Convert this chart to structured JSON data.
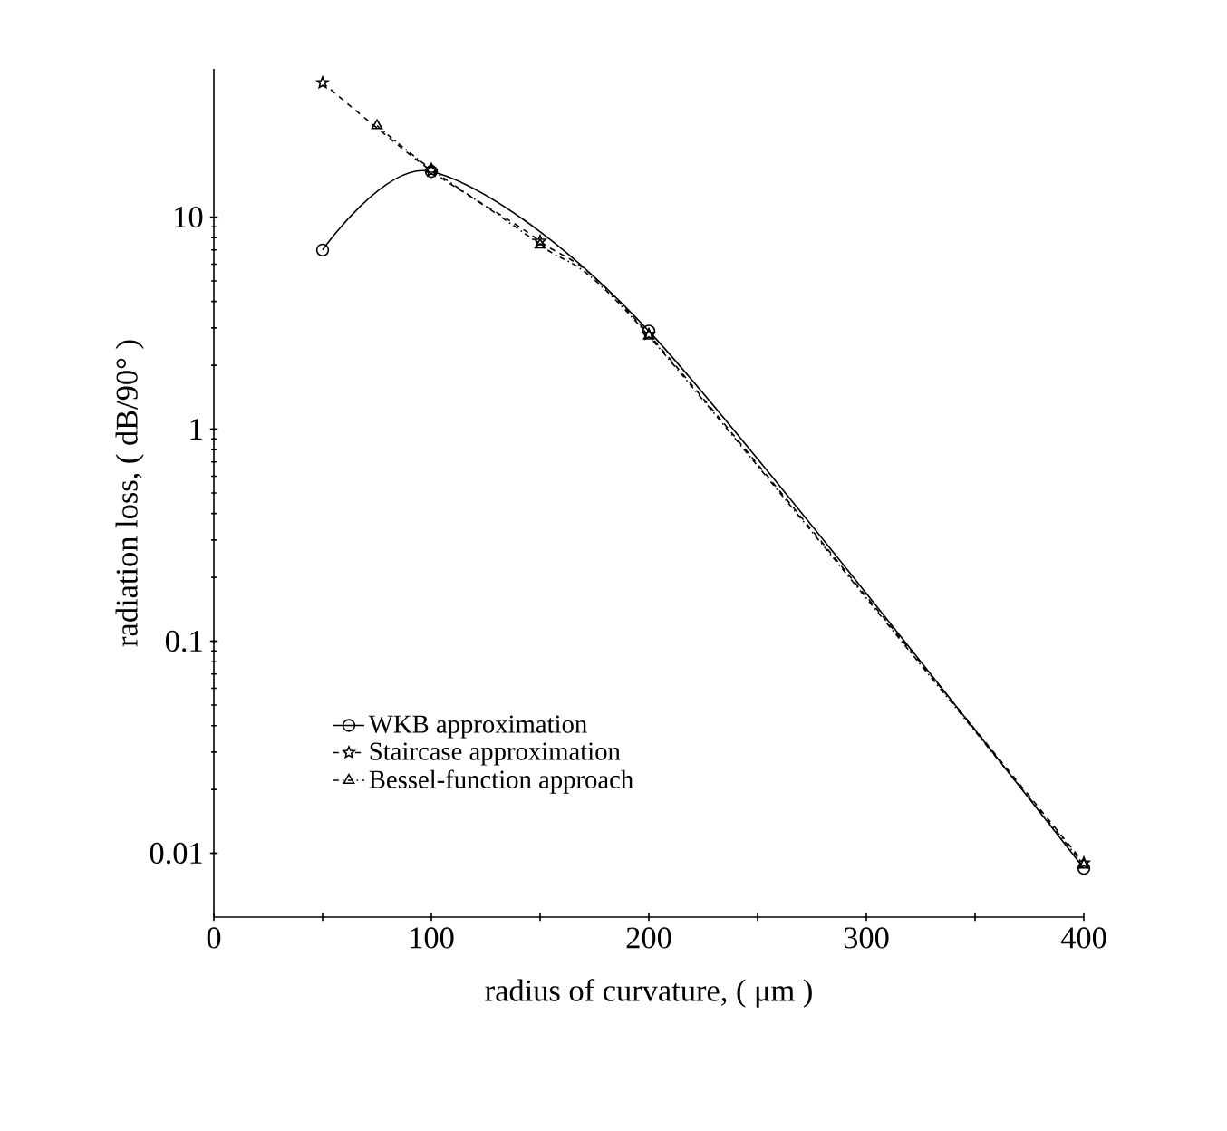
{
  "chart_data": {
    "type": "line",
    "xlabel": "radius of curvature, ( μm )",
    "ylabel": "radiation loss, ( dB/90° )",
    "log": "y",
    "xlim": [
      0,
      400
    ],
    "ylim": [
      0.005,
      50
    ],
    "xticks": [
      0,
      {
        "value": 50,
        "label": null
      },
      100,
      {
        "value": 150,
        "label": null
      },
      200,
      {
        "value": 250,
        "label": null
      },
      300,
      {
        "value": 350,
        "label": null
      },
      400
    ],
    "yticks": [
      0.01,
      0.1,
      1,
      10
    ],
    "legend": "bottom left",
    "grid": false,
    "series": [
      {
        "name": "WKB approximation",
        "color": "#000000",
        "marker": "circle",
        "line_style": "solid",
        "x": [
          50,
          100,
          200,
          400
        ],
        "values": [
          7,
          16.4,
          2.9,
          0.0085
        ]
      },
      {
        "name": "Staircase approximation",
        "color": "#000000",
        "marker": "star",
        "line_style": "dashed",
        "x": [
          50,
          100,
          150,
          200,
          400
        ],
        "values": [
          43,
          16.5,
          7.7,
          2.8,
          0.009
        ]
      },
      {
        "name": "Bessel-function approach",
        "color": "#000000",
        "marker": "triangle",
        "line_style": "dashdot",
        "x": [
          75,
          100,
          150,
          200,
          400
        ],
        "values": [
          27,
          16.8,
          7.4,
          2.75,
          0.0088
        ]
      }
    ]
  }
}
